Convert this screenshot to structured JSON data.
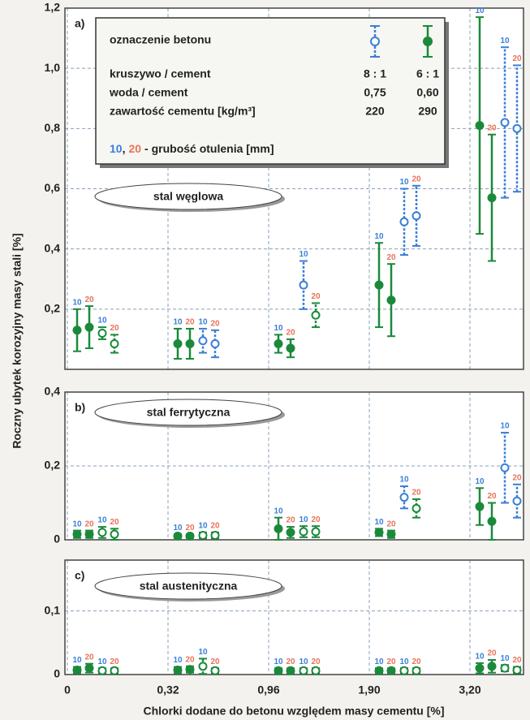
{
  "y_label": "Roczny ubytek korozyjny masy stali [%]",
  "legend": {
    "title": "oznaczenie betonu",
    "rows": [
      [
        "kruszywo / cement",
        "8 : 1",
        "6 : 1"
      ],
      [
        "woda / cement",
        "0,75",
        "0,60"
      ],
      [
        "zawartość cementu [kg/m³]",
        "220",
        "290"
      ]
    ],
    "separator": ",",
    "note": "- grubość otulenia [mm]"
  },
  "chart_data": [
    {
      "type": "errorbar",
      "letter": "a)",
      "name": "stal węglowa",
      "ylim": [
        0,
        1.2
      ],
      "yticks": [
        {
          "value": 0.2,
          "label": "0,2"
        },
        {
          "value": 0.4,
          "label": "0,4"
        },
        {
          "value": 0.6,
          "label": "0,6"
        },
        {
          "value": 0.8,
          "label": "0,8"
        },
        {
          "value": 1.0,
          "label": "1,0"
        },
        {
          "value": 1.2,
          "label": "1,2"
        }
      ],
      "series": [
        {
          "label": "10",
          "label_color": "#3a7fd5",
          "filled": true,
          "colors": [
            "#1a8a3a",
            "#1a8a3a",
            "#1a8a3a",
            "#1a8a3a",
            "#1a8a3a"
          ],
          "values": [
            0.13,
            0.085,
            0.085,
            0.28,
            0.81
          ],
          "errors": [
            0.07,
            0.05,
            0.03,
            0.14,
            0.36
          ]
        },
        {
          "label": "20",
          "label_color": "#e8735a",
          "filled": true,
          "colors": [
            "#1a8a3a",
            "#1a8a3a",
            "#1a8a3a",
            "#1a8a3a",
            "#1a8a3a"
          ],
          "values": [
            0.14,
            0.085,
            0.07,
            0.23,
            0.57
          ],
          "errors": [
            0.07,
            0.05,
            0.03,
            0.12,
            0.21
          ]
        },
        {
          "label": "10",
          "label_color": "#3a7fd5",
          "filled": false,
          "colors": [
            "#1a8a3a",
            "#3a7fd5",
            "#3a7fd5",
            "#3a7fd5",
            "#3a7fd5"
          ],
          "values": [
            0.12,
            0.095,
            0.28,
            0.49,
            0.82
          ],
          "errors": [
            0.02,
            0.04,
            0.08,
            0.11,
            0.25
          ]
        },
        {
          "label": "20",
          "label_color": "#e8735a",
          "filled": false,
          "colors": [
            "#1a8a3a",
            "#3a7fd5",
            "#1a8a3a",
            "#3a7fd5",
            "#3a7fd5"
          ],
          "values": [
            0.085,
            0.085,
            0.18,
            0.51,
            0.8
          ],
          "errors": [
            0.03,
            0.045,
            0.04,
            0.1,
            0.21
          ]
        }
      ]
    },
    {
      "type": "errorbar",
      "letter": "b)",
      "name": "stal ferrytyczna",
      "ylim": [
        0,
        0.4
      ],
      "yticks": [
        0,
        {
          "value": 0.2,
          "label": "0,2"
        },
        {
          "value": 0.4,
          "label": "0,4"
        }
      ],
      "series": [
        {
          "label": "10",
          "label_color": "#3a7fd5",
          "filled": true,
          "colors": [
            "#1a8a3a",
            "#1a8a3a",
            "#1a8a3a",
            "#1a8a3a",
            "#1a8a3a"
          ],
          "values": [
            0.015,
            0.01,
            0.03,
            0.02,
            0.09
          ],
          "errors": [
            0.01,
            0.005,
            0.03,
            0.01,
            0.05
          ]
        },
        {
          "label": "20",
          "label_color": "#e8735a",
          "filled": true,
          "colors": [
            "#1a8a3a",
            "#1a8a3a",
            "#1a8a3a",
            "#1a8a3a",
            "#1a8a3a"
          ],
          "values": [
            0.015,
            0.01,
            0.02,
            0.015,
            0.05
          ],
          "errors": [
            0.01,
            0.005,
            0.015,
            0.01,
            0.05
          ]
        },
        {
          "label": "10",
          "label_color": "#3a7fd5",
          "filled": false,
          "colors": [
            "#1a8a3a",
            "#1a8a3a",
            "#1a8a3a",
            "#3a7fd5",
            "#3a7fd5"
          ],
          "values": [
            0.02,
            0.012,
            0.022,
            0.115,
            0.195
          ],
          "errors": [
            0.015,
            0.008,
            0.015,
            0.03,
            0.095
          ]
        },
        {
          "label": "20",
          "label_color": "#e8735a",
          "filled": false,
          "colors": [
            "#1a8a3a",
            "#1a8a3a",
            "#1a8a3a",
            "#1a8a3a",
            "#3a7fd5"
          ],
          "values": [
            0.015,
            0.012,
            0.022,
            0.085,
            0.105
          ],
          "errors": [
            0.015,
            0.008,
            0.015,
            0.025,
            0.045
          ]
        }
      ]
    },
    {
      "type": "errorbar",
      "letter": "c)",
      "name": "stal austenityczna",
      "ylim": [
        0,
        0.18
      ],
      "yticks": [
        0,
        {
          "value": 0.1,
          "label": "0,1"
        }
      ],
      "categories": [
        "0",
        "0,32",
        "0,96",
        "1,90",
        "3,20"
      ],
      "xlabel": "Chlorki dodane do betonu względem masy cementu [%]",
      "series": [
        {
          "label": "10",
          "label_color": "#3a7fd5",
          "filled": true,
          "colors": [
            "#1a8a3a",
            "#1a8a3a",
            "#1a8a3a",
            "#1a8a3a",
            "#1a8a3a"
          ],
          "values": [
            0.007,
            0.007,
            0.006,
            0.006,
            0.01
          ],
          "errors": [
            0.005,
            0.005,
            0.004,
            0.004,
            0.008
          ]
        },
        {
          "label": "20",
          "label_color": "#e8735a",
          "filled": true,
          "colors": [
            "#1a8a3a",
            "#1a8a3a",
            "#1a8a3a",
            "#1a8a3a",
            "#1a8a3a"
          ],
          "values": [
            0.01,
            0.008,
            0.006,
            0.006,
            0.013
          ],
          "errors": [
            0.007,
            0.005,
            0.004,
            0.004,
            0.01
          ]
        },
        {
          "label": "10",
          "label_color": "#3a7fd5",
          "filled": false,
          "colors": [
            "#1a8a3a",
            "#1a8a3a",
            "#1a8a3a",
            "#1a8a3a",
            "#1a8a3a"
          ],
          "values": [
            0.006,
            0.013,
            0.006,
            0.006,
            0.01
          ],
          "errors": [
            0.004,
            0.012,
            0.004,
            0.004,
            0.005
          ]
        },
        {
          "label": "20",
          "label_color": "#e8735a",
          "filled": false,
          "colors": [
            "#1a8a3a",
            "#1a8a3a",
            "#1a8a3a",
            "#1a8a3a",
            "#1a8a3a"
          ],
          "values": [
            0.006,
            0.006,
            0.006,
            0.006,
            0.007
          ],
          "errors": [
            0.004,
            0.004,
            0.004,
            0.004,
            0.005
          ]
        }
      ]
    }
  ]
}
